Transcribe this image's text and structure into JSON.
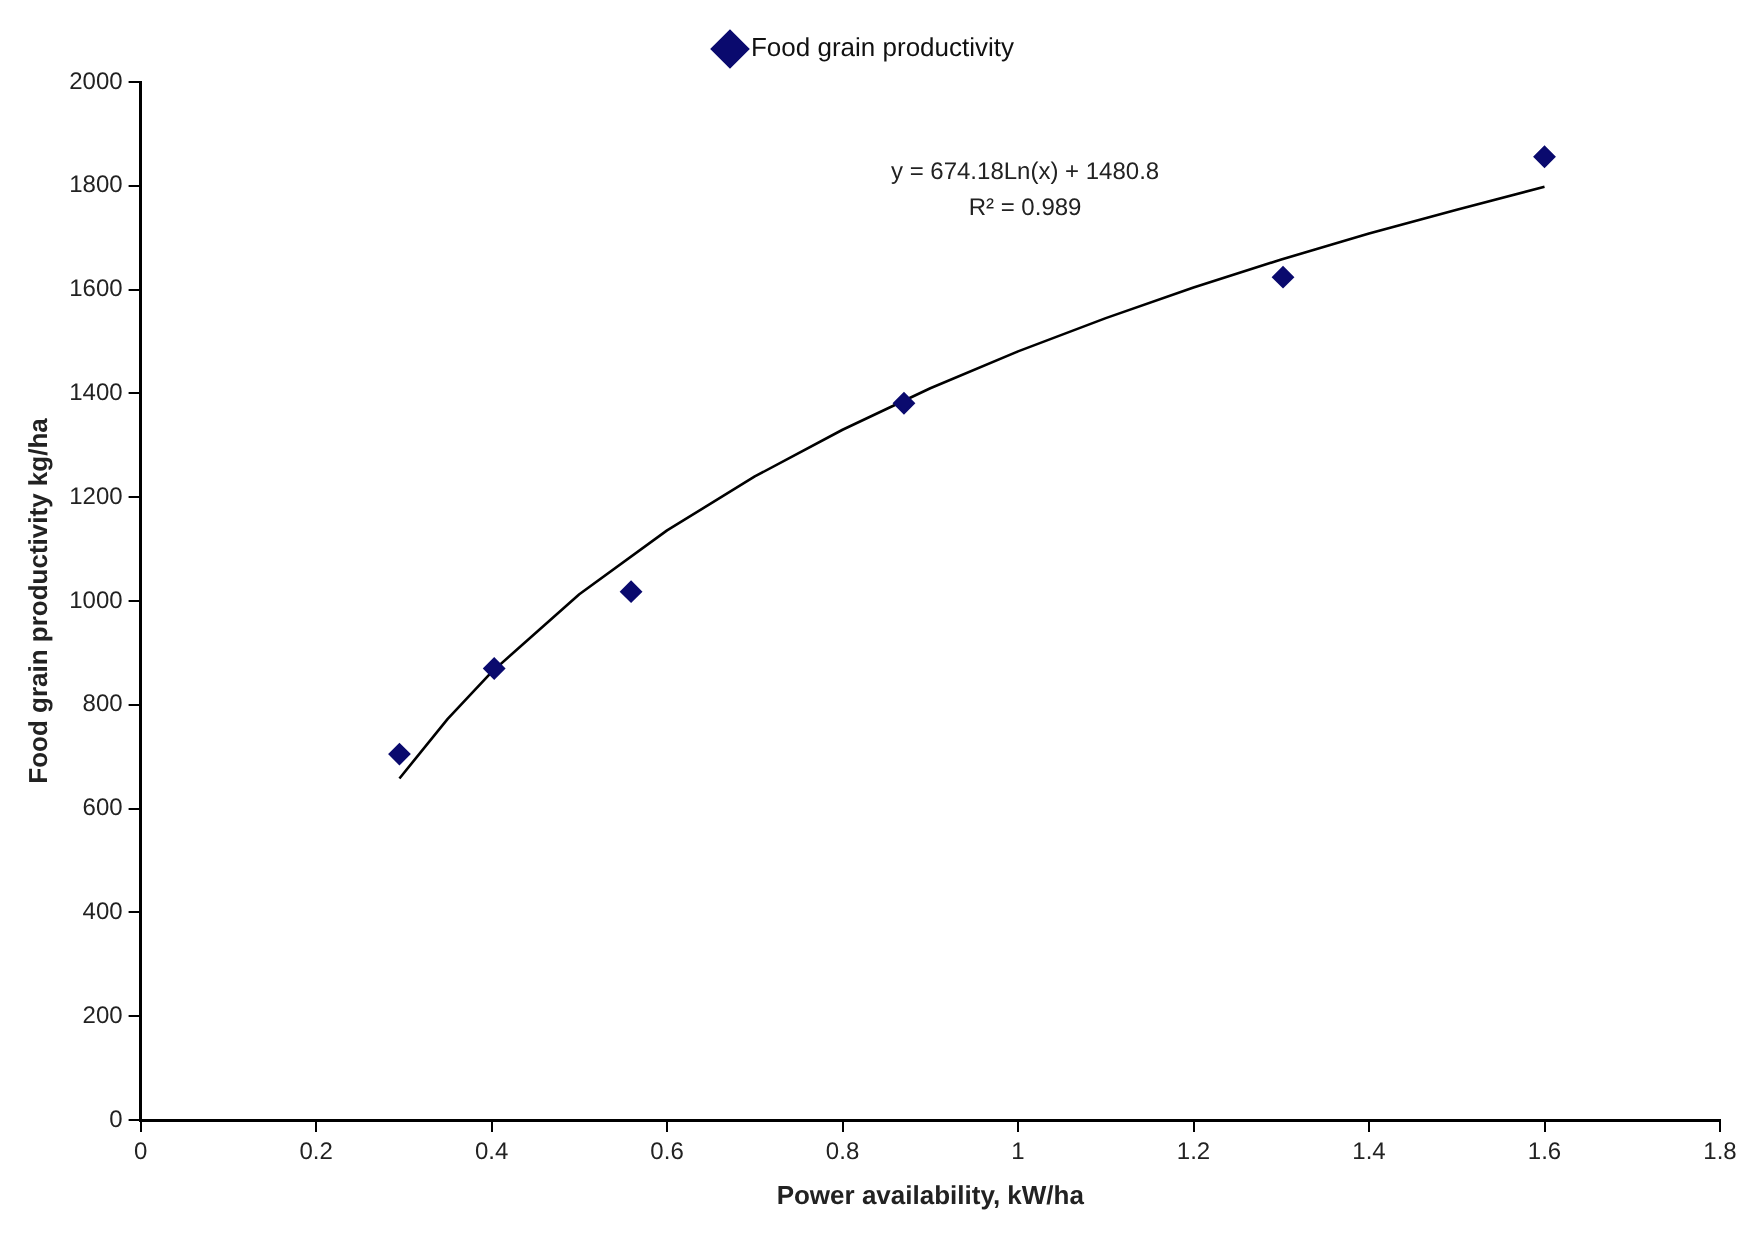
{
  "chart_data": {
    "type": "scatter",
    "xlabel": "Power availability, kW/ha",
    "ylabel": "Food grain productivity kg/ha",
    "xlim": [
      0,
      1.8
    ],
    "xticks": [
      0,
      0.2,
      0.4,
      0.6,
      0.8,
      1,
      1.2,
      1.4,
      1.6,
      1.8
    ],
    "ylim": [
      0,
      2000
    ],
    "yticks": [
      0,
      200,
      400,
      600,
      800,
      1000,
      1200,
      1400,
      1600,
      1800,
      2000
    ],
    "grid": false,
    "legend": "top",
    "marker": "diamond",
    "series": [
      {
        "name": "Food grain productivity",
        "color": "#0a0a6e",
        "x": [
          0.295,
          0.403,
          0.559,
          0.87,
          1.302,
          1.6
        ],
        "values": [
          705,
          870,
          1018,
          1381,
          1624,
          1856
        ]
      },
      {
        "type": "line",
        "color": "#000000",
        "x": [
          0.295,
          0.35,
          0.4,
          0.5,
          0.6,
          0.7,
          0.8,
          0.9,
          1.0,
          1.1,
          1.2,
          1.3,
          1.4,
          1.5,
          1.6
        ],
        "values": [
          658,
          773,
          863,
          1013,
          1136,
          1240,
          1330,
          1410,
          1481,
          1545,
          1604,
          1658,
          1708,
          1754,
          1798
        ],
        "marker": "none",
        "line_style": "solid"
      }
    ],
    "annotations": [
      "y = 674.18Ln(x) + 1480.8",
      "R² = 0.989"
    ]
  }
}
